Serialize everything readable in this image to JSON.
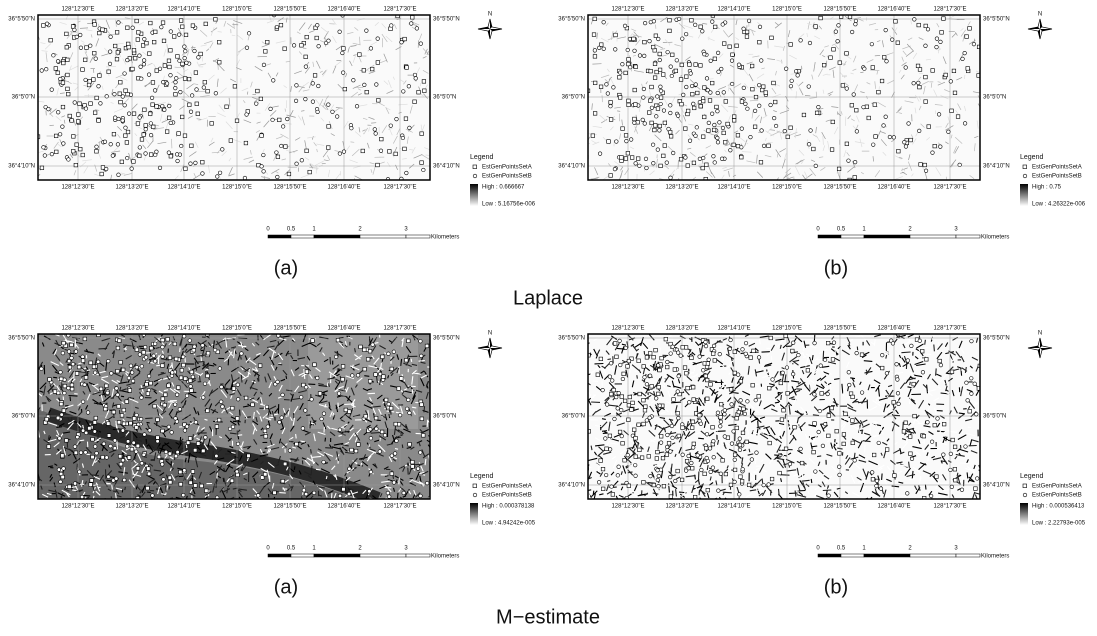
{
  "longitudes": [
    "128°12'30\"E",
    "128°13'20\"E",
    "128°14'10\"E",
    "128°15'0\"E",
    "128°15'50\"E",
    "128°16'40\"E",
    "128°17'30\"E"
  ],
  "latitudes": [
    "36°5'50\"N",
    "36°5'0\"N",
    "36°4'10\"N"
  ],
  "north": "N",
  "legend": {
    "title": "Legend",
    "set_a": "EstGenPointsSetA",
    "set_b": "EstGenPointsSetB"
  },
  "scale_bar": {
    "ticks": [
      "0",
      "0.5",
      "1",
      "2",
      "3"
    ],
    "unit": "Kilometers"
  },
  "groups": [
    {
      "label": "Laplace",
      "panels": [
        {
          "caption": "(a)",
          "high": "High : 0.666667",
          "low": "Low : 5.16756e-006"
        },
        {
          "caption": "(b)",
          "high": "High : 0.75",
          "low": "Low : 4.26322e-006"
        }
      ]
    },
    {
      "label": "M−estimate",
      "panels": [
        {
          "caption": "(a)",
          "high": "High : 0.000378138",
          "low": "Low : 4.94242e-005"
        },
        {
          "caption": "(b)",
          "high": "High : 0.000536413",
          "low": "Low : 2.22793e-005"
        }
      ]
    }
  ]
}
